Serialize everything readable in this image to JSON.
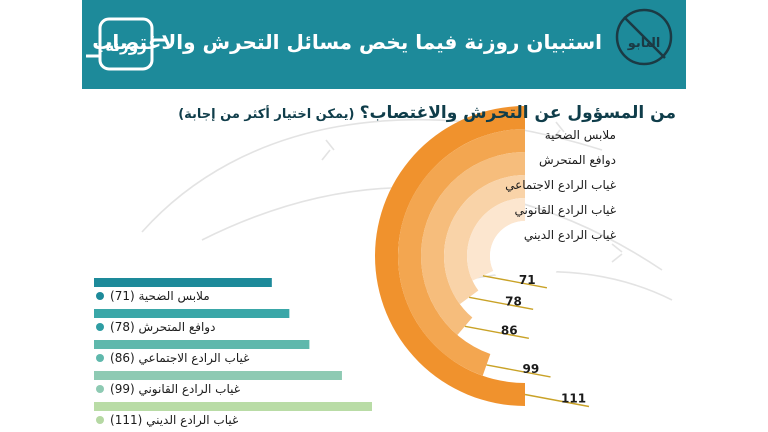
{
  "header": {
    "title": "استبيان روزنة فيما يخص مسائل التحرش والاغتصاب",
    "logo_left_text": "التابو",
    "logo_right_text": "روزنة"
  },
  "question": {
    "main": "من المسؤول عن التحرش والاغتصاب؟",
    "note": "(يمكن اختيار أكثر من إجابة)"
  },
  "colors": {
    "header_bg": "#1d8a9a",
    "bar_colors": [
      "#1d8a9a",
      "#3aa7a8",
      "#5fb8ac",
      "#8ecab3",
      "#b9dca6"
    ],
    "arc_colors": [
      "#f0922d",
      "#f3a650",
      "#f6bd7c",
      "#f9d3a8",
      "#fce6cf"
    ],
    "bullet_colors": [
      "#1d8a9a",
      "#2e9da3",
      "#5fb8ac",
      "#8ecab3",
      "#b5d8a3"
    ],
    "gold": "#c9a227"
  },
  "chart_data": {
    "type": "bar",
    "categories": [
      "ملابس الضحية",
      "دوافع المتحرش",
      "غياب الرادع الاجتماعي",
      "غياب الرادع القانوني",
      "غياب الرادع الديني"
    ],
    "values": [
      71,
      78,
      86,
      99,
      111
    ],
    "bar_labels": [
      "ملابس الضحية (71)",
      "دوافع المتحرش (78)",
      "غياب الرادع الاجتماعي (86)",
      "غياب الرادع القانوني (99)",
      "غياب الرادع الديني (111)"
    ],
    "arc_value_labels": [
      "71",
      "78",
      "86",
      "99",
      "111"
    ],
    "legend": [
      "ملابس الضحية",
      "دوافع المتحرش",
      "غياب الرادع الاجتماعي",
      "غياب الرادع القانوني",
      "غياب الرادع الديني"
    ],
    "title": "من المسؤول عن التحرش والاغتصاب؟",
    "xlabel": "",
    "ylabel": ""
  }
}
